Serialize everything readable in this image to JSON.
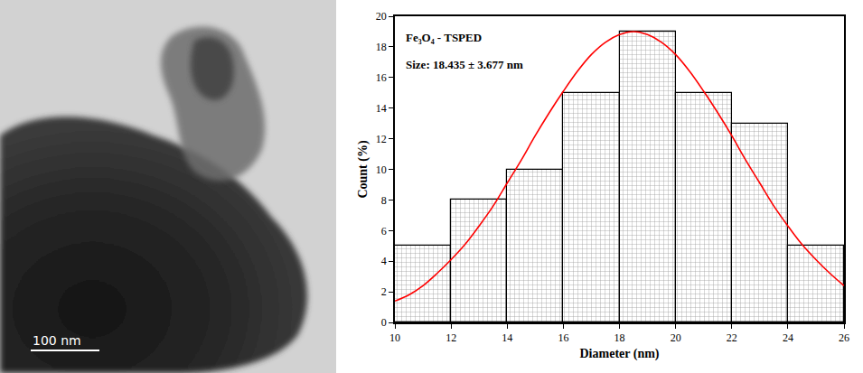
{
  "chart_data": {
    "type": "histogram",
    "xlabel": "Diameter (nm)",
    "ylabel": "Count (%)",
    "annotations": [
      "Fe₃O₄ - TSPED",
      "Size: 18.435 ± 3.677 nm"
    ],
    "bins": [
      10,
      12,
      14,
      16,
      18,
      20,
      22,
      24,
      26
    ],
    "values": [
      5,
      8,
      10,
      15,
      19,
      15,
      13,
      5
    ],
    "color": "#ffffff",
    "fit": {
      "type": "line",
      "color": "#ff0000",
      "x": [
        10,
        10.5,
        11,
        11.5,
        12,
        12.5,
        13,
        13.5,
        14,
        14.5,
        15,
        15.5,
        16,
        16.5,
        17,
        17.5,
        18,
        18.5,
        19,
        19.5,
        20,
        20.5,
        21,
        21.5,
        22,
        22.5,
        23,
        23.5,
        24,
        24.5,
        25,
        25.5,
        26
      ],
      "values": [
        1.4,
        1.8,
        2.4,
        3.2,
        4.1,
        5.1,
        6.3,
        7.6,
        9.1,
        10.6,
        12.2,
        13.7,
        15.1,
        16.4,
        17.5,
        18.3,
        18.8,
        19.0,
        18.8,
        18.3,
        17.5,
        16.4,
        15.1,
        13.7,
        12.2,
        10.6,
        9.1,
        7.6,
        6.3,
        5.1,
        4.1,
        3.2,
        2.4
      ]
    },
    "xlim": [
      10,
      26
    ],
    "xticks": [
      10,
      12,
      14,
      16,
      18,
      20,
      22,
      24,
      26
    ],
    "ylim": [
      0,
      20
    ],
    "yticks": [
      0,
      2,
      4,
      6,
      8,
      10,
      12,
      14,
      16,
      18,
      20
    ],
    "grid": false
  },
  "image": {
    "scale_bar": "100 nm"
  }
}
